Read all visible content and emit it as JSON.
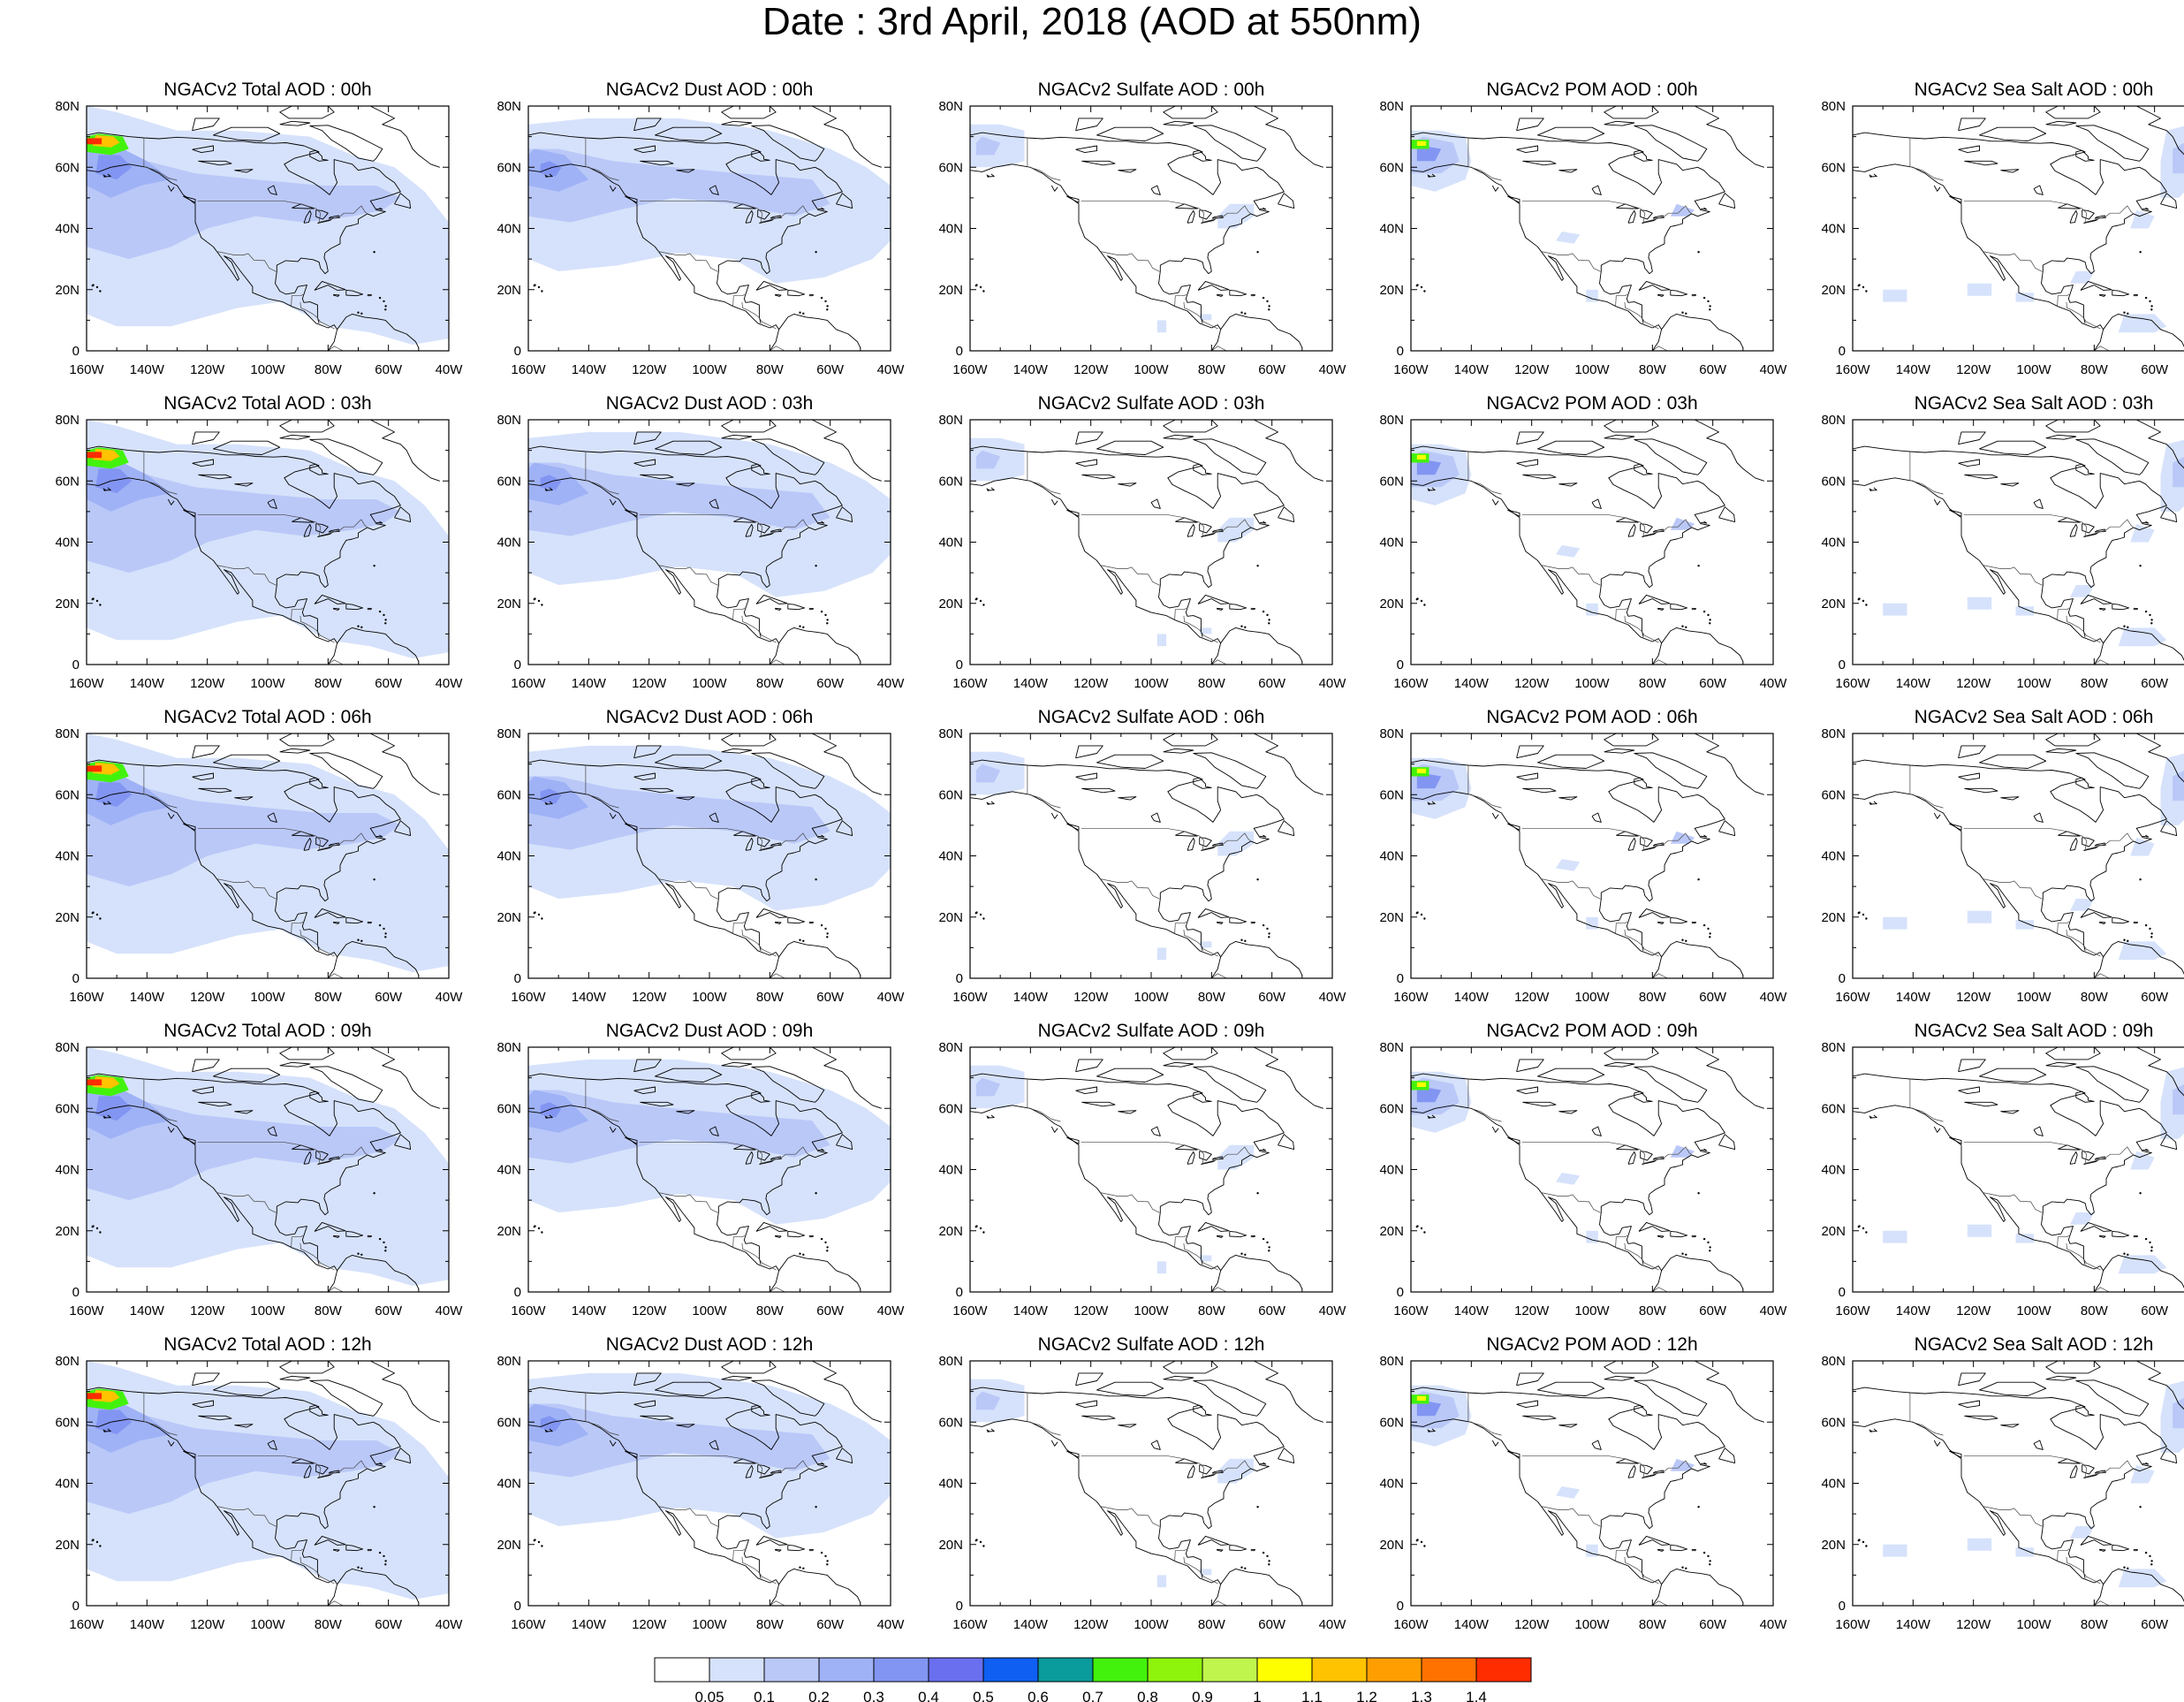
{
  "title": "Date : 3rd April, 2018 (AOD at 550nm)",
  "rows": [
    {
      "time": "00h",
      "panels": [
        {
          "title": "NGACv2 Total AOD : 00h",
          "species": "total"
        },
        {
          "title": "NGACv2 Dust AOD : 00h",
          "species": "dust"
        },
        {
          "title": "NGACv2 Sulfate AOD : 00h",
          "species": "sulfate"
        },
        {
          "title": "NGACv2 POM AOD : 00h",
          "species": "pom"
        },
        {
          "title": "NGACv2 Sea Salt AOD : 00h",
          "species": "seasalt"
        }
      ]
    },
    {
      "time": "03h",
      "panels": [
        {
          "title": "NGACv2 Total AOD : 03h",
          "species": "total"
        },
        {
          "title": "NGACv2 Dust AOD : 03h",
          "species": "dust"
        },
        {
          "title": "NGACv2 Sulfate AOD : 03h",
          "species": "sulfate"
        },
        {
          "title": "NGACv2 POM AOD : 03h",
          "species": "pom"
        },
        {
          "title": "NGACv2 Sea Salt AOD : 03h",
          "species": "seasalt"
        }
      ]
    },
    {
      "time": "06h",
      "panels": [
        {
          "title": "NGACv2 Total AOD : 06h",
          "species": "total"
        },
        {
          "title": "NGACv2 Dust AOD : 06h",
          "species": "dust"
        },
        {
          "title": "NGACv2 Sulfate AOD : 06h",
          "species": "sulfate"
        },
        {
          "title": "NGACv2 POM AOD : 06h",
          "species": "pom"
        },
        {
          "title": "NGACv2 Sea Salt AOD : 06h",
          "species": "seasalt"
        }
      ]
    },
    {
      "time": "09h",
      "panels": [
        {
          "title": "NGACv2 Total AOD : 09h",
          "species": "total"
        },
        {
          "title": "NGACv2 Dust AOD : 09h",
          "species": "dust"
        },
        {
          "title": "NGACv2 Sulfate AOD : 09h",
          "species": "sulfate"
        },
        {
          "title": "NGACv2 POM AOD : 09h",
          "species": "pom"
        },
        {
          "title": "NGACv2 Sea Salt  AOD : 09h",
          "species": "seasalt"
        }
      ]
    },
    {
      "time": "12h",
      "panels": [
        {
          "title": "NGACv2 Total AOD  : 12h",
          "species": "total"
        },
        {
          "title": "NGACv2 Dust AOD : 12h",
          "species": "dust"
        },
        {
          "title": "NGACv2 Sulfate AOD : 12h",
          "species": "sulfate"
        },
        {
          "title": "NGACv2 POM  AOD : 12h",
          "species": "pom"
        },
        {
          "title": "NGACv2 Sea Salt  AOD : 12h",
          "species": "seasalt"
        }
      ]
    }
  ],
  "lon_ticks": [
    "160W",
    "140W",
    "120W",
    "100W",
    "80W",
    "60W",
    "40W"
  ],
  "lat_ticks": [
    "0",
    "20N",
    "40N",
    "60N",
    "80N"
  ],
  "lon_range": [
    -160,
    -40
  ],
  "lat_range": [
    0,
    80
  ],
  "colorbar": {
    "labels": [
      "0.05",
      "0.1",
      "0.2",
      "0.3",
      "0.4",
      "0.5",
      "0.6",
      "0.7",
      "0.8",
      "0.9",
      "1",
      "1.1",
      "1.2",
      "1.3",
      "1.4"
    ],
    "colors": [
      "#ffffff",
      "#d6e2fb",
      "#bac8f8",
      "#9fb2f6",
      "#8295f2",
      "#6a6ff0",
      "#0e5ff2",
      "#0a9b9d",
      "#43f20c",
      "#8ef40c",
      "#c0f54d",
      "#fffe00",
      "#ffc300",
      "#ff9e00",
      "#ff7200",
      "#ff2c00"
    ]
  },
  "chart_data": {
    "type": "heatmap",
    "title": "Date : 3rd April, 2018 (AOD at 550nm)",
    "variables": [
      "Total AOD",
      "Dust AOD",
      "Sulfate AOD",
      "POM AOD",
      "Sea Salt AOD"
    ],
    "times": [
      "00h",
      "03h",
      "06h",
      "09h",
      "12h"
    ],
    "xlim": [
      -160,
      -40
    ],
    "ylim": [
      0,
      80
    ],
    "levels": [
      0.05,
      0.1,
      0.2,
      0.3,
      0.4,
      0.5,
      0.6,
      0.7,
      0.8,
      0.9,
      1,
      1.1,
      1.2,
      1.3,
      1.4
    ],
    "features": [
      {
        "variable": "Total AOD",
        "region": "Alaska / NE Pacific plume",
        "max_level": 1.4
      },
      {
        "variable": "Total AOD",
        "region": "broad N Pacific and North America background",
        "range": [
          0.05,
          0.2
        ]
      },
      {
        "variable": "Dust AOD",
        "region": "NE Pacific and Canada",
        "range": [
          0.05,
          0.4
        ]
      },
      {
        "variable": "Sulfate AOD",
        "region": "Alaska and US northeast",
        "range": [
          0.05,
          0.3
        ]
      },
      {
        "variable": "POM AOD",
        "region": "Alaska fire plume",
        "max_level": 1.0
      },
      {
        "variable": "Sea Salt AOD",
        "region": "N Atlantic / Labrador coast",
        "range": [
          0.05,
          0.3
        ]
      }
    ]
  }
}
